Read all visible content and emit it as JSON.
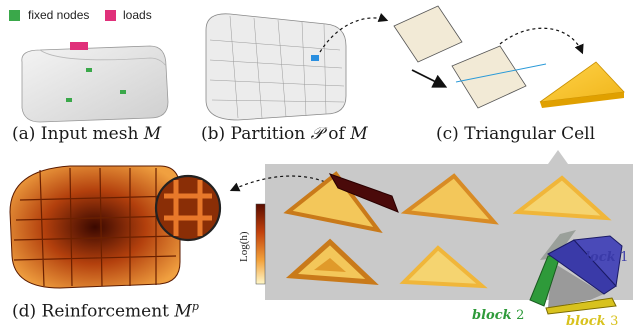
{
  "legend": {
    "fixed_label": "fixed nodes",
    "loads_label": "loads",
    "fixed_color": "#3aa84a",
    "loads_color": "#e0307a"
  },
  "captions": {
    "a_prefix": "(a) Input mesh ",
    "a_var": "M",
    "b_prefix": "(b) Partition ",
    "b_var": "𝒫",
    "b_mid": " of ",
    "b_var2": "M",
    "c": "(c) Triangular Cell",
    "d_prefix": "(d) Reinforcement ",
    "d_var": "M",
    "d_sup": "p"
  },
  "colorbar": {
    "label": "Log(h)"
  },
  "blocks": {
    "b1_word": "block",
    "b1_num": "1",
    "b2_word": "block",
    "b2_num": "2",
    "b3_word": "block",
    "b3_num": "3",
    "b1_color": "#3a3aa8",
    "b2_color": "#2e9a3a",
    "b3_color": "#d8c21e"
  }
}
